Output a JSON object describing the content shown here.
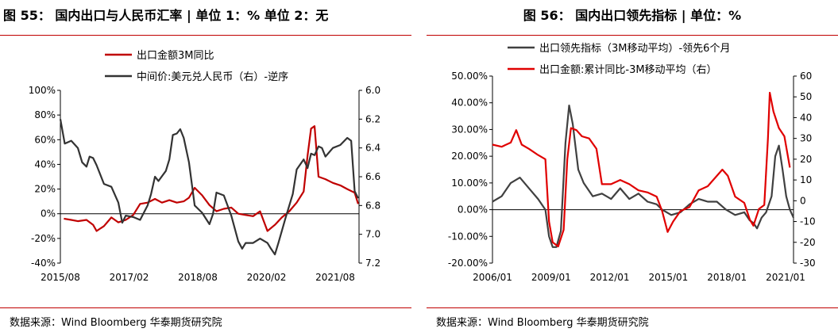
{
  "charts": [
    {
      "fig_title": "图 55：  国内出口与人民币汇率 | 单位 1：% 单位 2：无",
      "source": "数据来源：Wind Bloomberg 华泰期货研究院"
    },
    {
      "fig_title": "图 56：  国内出口领先指标 | 单位：%",
      "source": "数据来源：Wind Bloomberg 华泰期货研究院"
    }
  ],
  "chart_data": [
    {
      "type": "line",
      "legend_position": "top",
      "x_ticks": [
        "2015/08",
        "2017/02",
        "2018/08",
        "2020/02",
        "2021/08"
      ],
      "x_range": [
        2015.5,
        2022.35
      ],
      "y_left": {
        "ylim": [
          -40,
          100
        ],
        "ticks": [
          "-40%",
          "-20%",
          "0%",
          "20%",
          "40%",
          "60%",
          "80%",
          "100%"
        ]
      },
      "y_right": {
        "ylim": [
          7.2,
          6.0
        ],
        "inverted": true,
        "ticks": [
          "6.0",
          "6.2",
          "6.4",
          "6.6",
          "6.8",
          "7.0",
          "7.2"
        ]
      },
      "series": [
        {
          "name": "出口金额3M同比",
          "axis": "left",
          "color": "#c00000",
          "points": [
            [
              2015.58,
              -4
            ],
            [
              2015.75,
              -5
            ],
            [
              2015.9,
              -6
            ],
            [
              2016.1,
              -5
            ],
            [
              2016.25,
              -9
            ],
            [
              2016.33,
              -14
            ],
            [
              2016.5,
              -10
            ],
            [
              2016.67,
              -3
            ],
            [
              2016.83,
              -7
            ],
            [
              2017.0,
              -5
            ],
            [
              2017.17,
              -1
            ],
            [
              2017.33,
              8
            ],
            [
              2017.5,
              9
            ],
            [
              2017.67,
              12
            ],
            [
              2017.83,
              9
            ],
            [
              2018.0,
              11
            ],
            [
              2018.17,
              9
            ],
            [
              2018.33,
              10
            ],
            [
              2018.45,
              13
            ],
            [
              2018.58,
              21
            ],
            [
              2018.75,
              15
            ],
            [
              2018.92,
              7
            ],
            [
              2019.08,
              2
            ],
            [
              2019.25,
              4
            ],
            [
              2019.42,
              5
            ],
            [
              2019.58,
              0
            ],
            [
              2019.75,
              -1
            ],
            [
              2019.92,
              -2
            ],
            [
              2020.08,
              2
            ],
            [
              2020.25,
              -14
            ],
            [
              2020.42,
              -9
            ],
            [
              2020.58,
              -3
            ],
            [
              2020.75,
              2
            ],
            [
              2020.92,
              9
            ],
            [
              2021.08,
              18
            ],
            [
              2021.17,
              47
            ],
            [
              2021.25,
              69
            ],
            [
              2021.33,
              71
            ],
            [
              2021.42,
              30
            ],
            [
              2021.58,
              28
            ],
            [
              2021.75,
              25
            ],
            [
              2021.92,
              23
            ],
            [
              2022.08,
              20
            ],
            [
              2022.25,
              17
            ],
            [
              2022.33,
              8
            ]
          ]
        },
        {
          "name": "中间价:美元兑人民币（右）-逆序",
          "axis": "right",
          "color": "#333333",
          "points": [
            [
              2015.5,
              6.2
            ],
            [
              2015.6,
              6.37
            ],
            [
              2015.75,
              6.35
            ],
            [
              2015.9,
              6.4
            ],
            [
              2016.0,
              6.5
            ],
            [
              2016.1,
              6.53
            ],
            [
              2016.17,
              6.46
            ],
            [
              2016.25,
              6.47
            ],
            [
              2016.33,
              6.52
            ],
            [
              2016.5,
              6.65
            ],
            [
              2016.67,
              6.67
            ],
            [
              2016.83,
              6.78
            ],
            [
              2016.92,
              6.92
            ],
            [
              2017.0,
              6.87
            ],
            [
              2017.17,
              6.88
            ],
            [
              2017.33,
              6.9
            ],
            [
              2017.5,
              6.8
            ],
            [
              2017.58,
              6.72
            ],
            [
              2017.67,
              6.6
            ],
            [
              2017.75,
              6.63
            ],
            [
              2017.92,
              6.56
            ],
            [
              2018.0,
              6.48
            ],
            [
              2018.08,
              6.31
            ],
            [
              2018.17,
              6.3
            ],
            [
              2018.25,
              6.27
            ],
            [
              2018.33,
              6.33
            ],
            [
              2018.45,
              6.5
            ],
            [
              2018.58,
              6.8
            ],
            [
              2018.75,
              6.85
            ],
            [
              2018.92,
              6.93
            ],
            [
              2019.0,
              6.86
            ],
            [
              2019.08,
              6.71
            ],
            [
              2019.25,
              6.73
            ],
            [
              2019.42,
              6.87
            ],
            [
              2019.58,
              7.05
            ],
            [
              2019.67,
              7.1
            ],
            [
              2019.75,
              7.06
            ],
            [
              2019.92,
              7.06
            ],
            [
              2020.08,
              7.03
            ],
            [
              2020.25,
              7.06
            ],
            [
              2020.33,
              7.1
            ],
            [
              2020.42,
              7.14
            ],
            [
              2020.5,
              7.06
            ],
            [
              2020.67,
              6.88
            ],
            [
              2020.83,
              6.72
            ],
            [
              2020.92,
              6.55
            ],
            [
              2021.08,
              6.48
            ],
            [
              2021.17,
              6.54
            ],
            [
              2021.25,
              6.44
            ],
            [
              2021.33,
              6.45
            ],
            [
              2021.42,
              6.39
            ],
            [
              2021.5,
              6.4
            ],
            [
              2021.58,
              6.46
            ],
            [
              2021.75,
              6.4
            ],
            [
              2021.92,
              6.38
            ],
            [
              2022.08,
              6.33
            ],
            [
              2022.17,
              6.35
            ],
            [
              2022.25,
              6.7
            ],
            [
              2022.33,
              6.75
            ]
          ]
        }
      ]
    },
    {
      "type": "line",
      "legend_position": "top",
      "x_ticks": [
        "2006/01",
        "2009/01",
        "2012/01",
        "2015/01",
        "2018/01",
        "2021/01"
      ],
      "x_range": [
        2006.0,
        2022.5
      ],
      "y_left": {
        "ylim": [
          -20,
          50
        ],
        "ticks": [
          "-20.00%",
          "-10.00%",
          "0.00%",
          "10.00%",
          "20.00%",
          "30.00%",
          "40.00%",
          "50.00%"
        ]
      },
      "y_right": {
        "ylim": [
          -30,
          60
        ],
        "ticks": [
          "-30",
          "-20",
          "-10",
          "0",
          "10",
          "20",
          "30",
          "40",
          "50",
          "60"
        ]
      },
      "series": [
        {
          "name": "出口领先指标（3M移动平均）-领先6个月",
          "axis": "left",
          "color": "#404040",
          "points": [
            [
              2006.0,
              3
            ],
            [
              2006.5,
              5
            ],
            [
              2007.0,
              10
            ],
            [
              2007.5,
              12
            ],
            [
              2008.0,
              8
            ],
            [
              2008.5,
              4
            ],
            [
              2008.9,
              0
            ],
            [
              2009.1,
              -10
            ],
            [
              2009.3,
              -14
            ],
            [
              2009.5,
              -14
            ],
            [
              2009.75,
              -8
            ],
            [
              2010.0,
              25
            ],
            [
              2010.2,
              39
            ],
            [
              2010.4,
              32
            ],
            [
              2010.7,
              15
            ],
            [
              2011.0,
              10
            ],
            [
              2011.5,
              5
            ],
            [
              2012.0,
              6
            ],
            [
              2012.5,
              4
            ],
            [
              2013.0,
              8
            ],
            [
              2013.5,
              4
            ],
            [
              2014.0,
              6
            ],
            [
              2014.5,
              3
            ],
            [
              2015.0,
              2
            ],
            [
              2015.3,
              0
            ],
            [
              2015.8,
              -2
            ],
            [
              2016.3,
              -1
            ],
            [
              2016.8,
              2
            ],
            [
              2017.3,
              4
            ],
            [
              2017.8,
              3
            ],
            [
              2018.3,
              3
            ],
            [
              2018.8,
              0
            ],
            [
              2019.3,
              -2
            ],
            [
              2019.8,
              -1
            ],
            [
              2020.1,
              -4
            ],
            [
              2020.3,
              -5
            ],
            [
              2020.5,
              -7
            ],
            [
              2020.75,
              -3
            ],
            [
              2021.0,
              -1
            ],
            [
              2021.3,
              5
            ],
            [
              2021.5,
              20
            ],
            [
              2021.7,
              24
            ],
            [
              2021.9,
              15
            ],
            [
              2022.1,
              5
            ],
            [
              2022.3,
              0
            ],
            [
              2022.5,
              -3
            ]
          ]
        },
        {
          "name": "出口金额:累计同比-3M移动平均（右）",
          "axis": "right",
          "color": "#e00000",
          "points": [
            [
              2006.0,
              27
            ],
            [
              2006.5,
              26
            ],
            [
              2007.0,
              28
            ],
            [
              2007.3,
              34
            ],
            [
              2007.6,
              27
            ],
            [
              2008.0,
              25
            ],
            [
              2008.5,
              22
            ],
            [
              2008.9,
              20
            ],
            [
              2009.1,
              -10
            ],
            [
              2009.3,
              -20
            ],
            [
              2009.6,
              -22
            ],
            [
              2009.9,
              -14
            ],
            [
              2010.1,
              20
            ],
            [
              2010.3,
              35
            ],
            [
              2010.6,
              34
            ],
            [
              2010.9,
              31
            ],
            [
              2011.3,
              30
            ],
            [
              2011.7,
              25
            ],
            [
              2012.0,
              8
            ],
            [
              2012.5,
              8
            ],
            [
              2013.0,
              10
            ],
            [
              2013.5,
              8
            ],
            [
              2014.0,
              5
            ],
            [
              2014.5,
              4
            ],
            [
              2015.0,
              2
            ],
            [
              2015.3,
              -5
            ],
            [
              2015.6,
              -15
            ],
            [
              2015.9,
              -10
            ],
            [
              2016.3,
              -5
            ],
            [
              2016.8,
              -3
            ],
            [
              2017.3,
              5
            ],
            [
              2017.8,
              7
            ],
            [
              2018.3,
              12
            ],
            [
              2018.6,
              15
            ],
            [
              2018.9,
              12
            ],
            [
              2019.3,
              2
            ],
            [
              2019.8,
              -1
            ],
            [
              2020.1,
              -9
            ],
            [
              2020.3,
              -12
            ],
            [
              2020.6,
              -4
            ],
            [
              2020.9,
              -2
            ],
            [
              2021.1,
              30
            ],
            [
              2021.2,
              52
            ],
            [
              2021.4,
              43
            ],
            [
              2021.7,
              35
            ],
            [
              2022.0,
              31
            ],
            [
              2022.3,
              16
            ]
          ]
        }
      ]
    }
  ]
}
